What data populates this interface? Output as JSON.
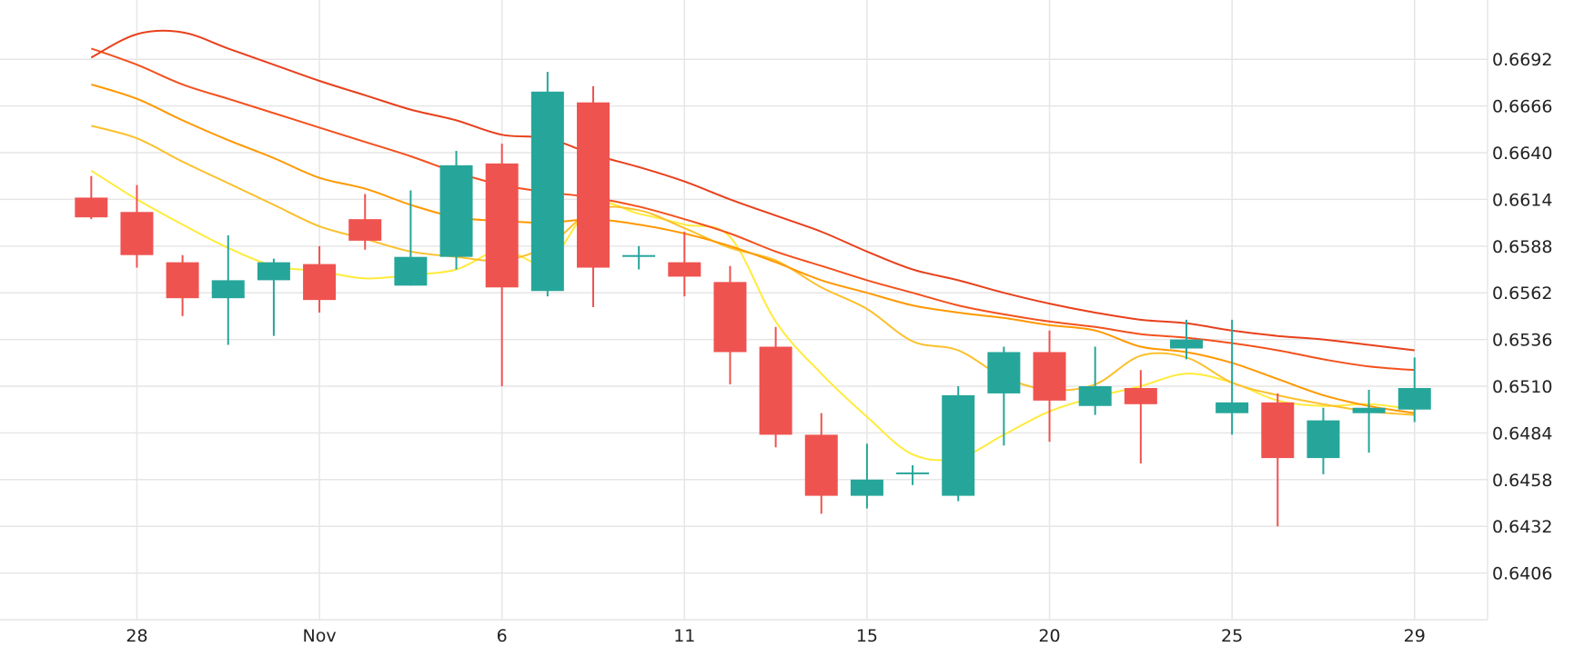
{
  "chart_data": {
    "type": "candlestick",
    "title": "",
    "xlabel": "",
    "ylabel": "",
    "ylim": [
      0.638,
      0.6725
    ],
    "y_ticks": [
      "0.6692",
      "0.6666",
      "0.6640",
      "0.6614",
      "0.6588",
      "0.6562",
      "0.6536",
      "0.6510",
      "0.6484",
      "0.6458",
      "0.6432",
      "0.6406"
    ],
    "x_ticks": [
      {
        "label": "28",
        "index": 1
      },
      {
        "label": "Nov",
        "index": 5
      },
      {
        "label": "6",
        "index": 9
      },
      {
        "label": "11",
        "index": 13
      },
      {
        "label": "15",
        "index": 17
      },
      {
        "label": "20",
        "index": 21
      },
      {
        "label": "25",
        "index": 25
      },
      {
        "label": "29",
        "index": 29
      }
    ],
    "x_index_range": [
      -2,
      30.6
    ],
    "grid": true,
    "colors": {
      "up": "#26a69a",
      "down": "#ef5350",
      "grid": "#e6e6e6",
      "ma_yellow": "#ffeb3b",
      "ma_gold": "#fbc02d",
      "ma_orange": "#ff9800",
      "ma_deep_orange": "#f4511e",
      "ma_red": "#e8401c"
    },
    "candles": [
      {
        "open": 0.6615,
        "high": 0.6627,
        "low": 0.6603,
        "close": 0.6604
      },
      {
        "open": 0.6607,
        "high": 0.6622,
        "low": 0.6576,
        "close": 0.6583
      },
      {
        "open": 0.6579,
        "high": 0.6583,
        "low": 0.6549,
        "close": 0.6559
      },
      {
        "open": 0.6559,
        "high": 0.6594,
        "low": 0.6533,
        "close": 0.6569
      },
      {
        "open": 0.6569,
        "high": 0.6581,
        "low": 0.6538,
        "close": 0.6579
      },
      {
        "open": 0.6578,
        "high": 0.6588,
        "low": 0.6551,
        "close": 0.6558
      },
      {
        "open": 0.6603,
        "high": 0.6617,
        "low": 0.6586,
        "close": 0.6591
      },
      {
        "open": 0.6566,
        "high": 0.6619,
        "low": 0.6566,
        "close": 0.6582
      },
      {
        "open": 0.6582,
        "high": 0.6641,
        "low": 0.6575,
        "close": 0.6633
      },
      {
        "open": 0.6634,
        "high": 0.6645,
        "low": 0.651,
        "close": 0.6565
      },
      {
        "open": 0.6563,
        "high": 0.6685,
        "low": 0.656,
        "close": 0.6674
      },
      {
        "open": 0.6668,
        "high": 0.6677,
        "low": 0.6554,
        "close": 0.6576
      },
      {
        "open": 0.6582,
        "high": 0.6588,
        "low": 0.6575,
        "close": 0.6583
      },
      {
        "open": 0.6579,
        "high": 0.6596,
        "low": 0.656,
        "close": 0.6571
      },
      {
        "open": 0.6568,
        "high": 0.6577,
        "low": 0.6511,
        "close": 0.6529
      },
      {
        "open": 0.6532,
        "high": 0.6543,
        "low": 0.6476,
        "close": 0.6483
      },
      {
        "open": 0.6483,
        "high": 0.6495,
        "low": 0.6439,
        "close": 0.6449
      },
      {
        "open": 0.6449,
        "high": 0.6478,
        "low": 0.6442,
        "close": 0.6458
      },
      {
        "open": 0.6462,
        "high": 0.6466,
        "low": 0.6455,
        "close": 0.6462
      },
      {
        "open": 0.6449,
        "high": 0.651,
        "low": 0.6446,
        "close": 0.6505
      },
      {
        "open": 0.6506,
        "high": 0.6532,
        "low": 0.6477,
        "close": 0.6529
      },
      {
        "open": 0.6529,
        "high": 0.6541,
        "low": 0.6479,
        "close": 0.6502
      },
      {
        "open": 0.6499,
        "high": 0.6532,
        "low": 0.6494,
        "close": 0.651
      },
      {
        "open": 0.6509,
        "high": 0.6519,
        "low": 0.6467,
        "close": 0.65
      },
      {
        "open": 0.6531,
        "high": 0.6547,
        "low": 0.6525,
        "close": 0.6536
      },
      {
        "open": 0.6495,
        "high": 0.6547,
        "low": 0.6483,
        "close": 0.6501
      },
      {
        "open": 0.6501,
        "high": 0.6506,
        "low": 0.6432,
        "close": 0.647
      },
      {
        "open": 0.647,
        "high": 0.6498,
        "low": 0.6461,
        "close": 0.6491
      },
      {
        "open": 0.6495,
        "high": 0.6508,
        "low": 0.6473,
        "close": 0.6498
      },
      {
        "open": 0.6497,
        "high": 0.6526,
        "low": 0.649,
        "close": 0.6509
      }
    ],
    "moving_averages": [
      {
        "color_key": "ma_yellow",
        "values": [
          0.663,
          0.6614,
          0.66,
          0.6587,
          0.6577,
          0.6574,
          0.657,
          0.6572,
          0.6575,
          0.6586,
          0.6579,
          0.6611,
          0.6606,
          0.66,
          0.6593,
          0.6546,
          0.6517,
          0.6493,
          0.6472,
          0.647,
          0.6483,
          0.6496,
          0.6504,
          0.651,
          0.6517,
          0.6512,
          0.6502,
          0.6499,
          0.65,
          0.6497
        ]
      },
      {
        "color_key": "ma_gold",
        "values": [
          0.6655,
          0.6648,
          0.6635,
          0.6623,
          0.6611,
          0.6599,
          0.6592,
          0.6585,
          0.6582,
          0.658,
          0.6588,
          0.6608,
          0.6608,
          0.6598,
          0.6587,
          0.658,
          0.6565,
          0.6553,
          0.6535,
          0.653,
          0.6515,
          0.6508,
          0.6511,
          0.6527,
          0.6526,
          0.6512,
          0.6505,
          0.65,
          0.6496,
          0.6494
        ]
      },
      {
        "color_key": "ma_orange",
        "values": [
          0.6678,
          0.667,
          0.6658,
          0.6647,
          0.6637,
          0.6626,
          0.662,
          0.6611,
          0.6604,
          0.6602,
          0.6601,
          0.6603,
          0.66,
          0.6595,
          0.6588,
          0.6579,
          0.6569,
          0.6562,
          0.6555,
          0.6551,
          0.6548,
          0.6544,
          0.6541,
          0.6532,
          0.6529,
          0.6523,
          0.6514,
          0.6505,
          0.6499,
          0.6495
        ]
      },
      {
        "color_key": "ma_deep_orange",
        "values": [
          0.6698,
          0.6689,
          0.6678,
          0.667,
          0.6662,
          0.6654,
          0.6646,
          0.6638,
          0.6629,
          0.6622,
          0.6618,
          0.6615,
          0.661,
          0.6603,
          0.6595,
          0.6585,
          0.6577,
          0.6569,
          0.6562,
          0.6555,
          0.655,
          0.6546,
          0.6543,
          0.6539,
          0.6537,
          0.6534,
          0.653,
          0.6525,
          0.6521,
          0.6519
        ]
      },
      {
        "color_key": "ma_red",
        "values": [
          0.6693,
          0.6706,
          0.6707,
          0.6698,
          0.6689,
          0.668,
          0.6672,
          0.6664,
          0.6658,
          0.665,
          0.6648,
          0.6639,
          0.6632,
          0.6624,
          0.6614,
          0.6605,
          0.6596,
          0.6585,
          0.6575,
          0.6569,
          0.6562,
          0.6556,
          0.6551,
          0.6547,
          0.6545,
          0.6541,
          0.6538,
          0.6536,
          0.6533,
          0.653
        ]
      }
    ]
  }
}
